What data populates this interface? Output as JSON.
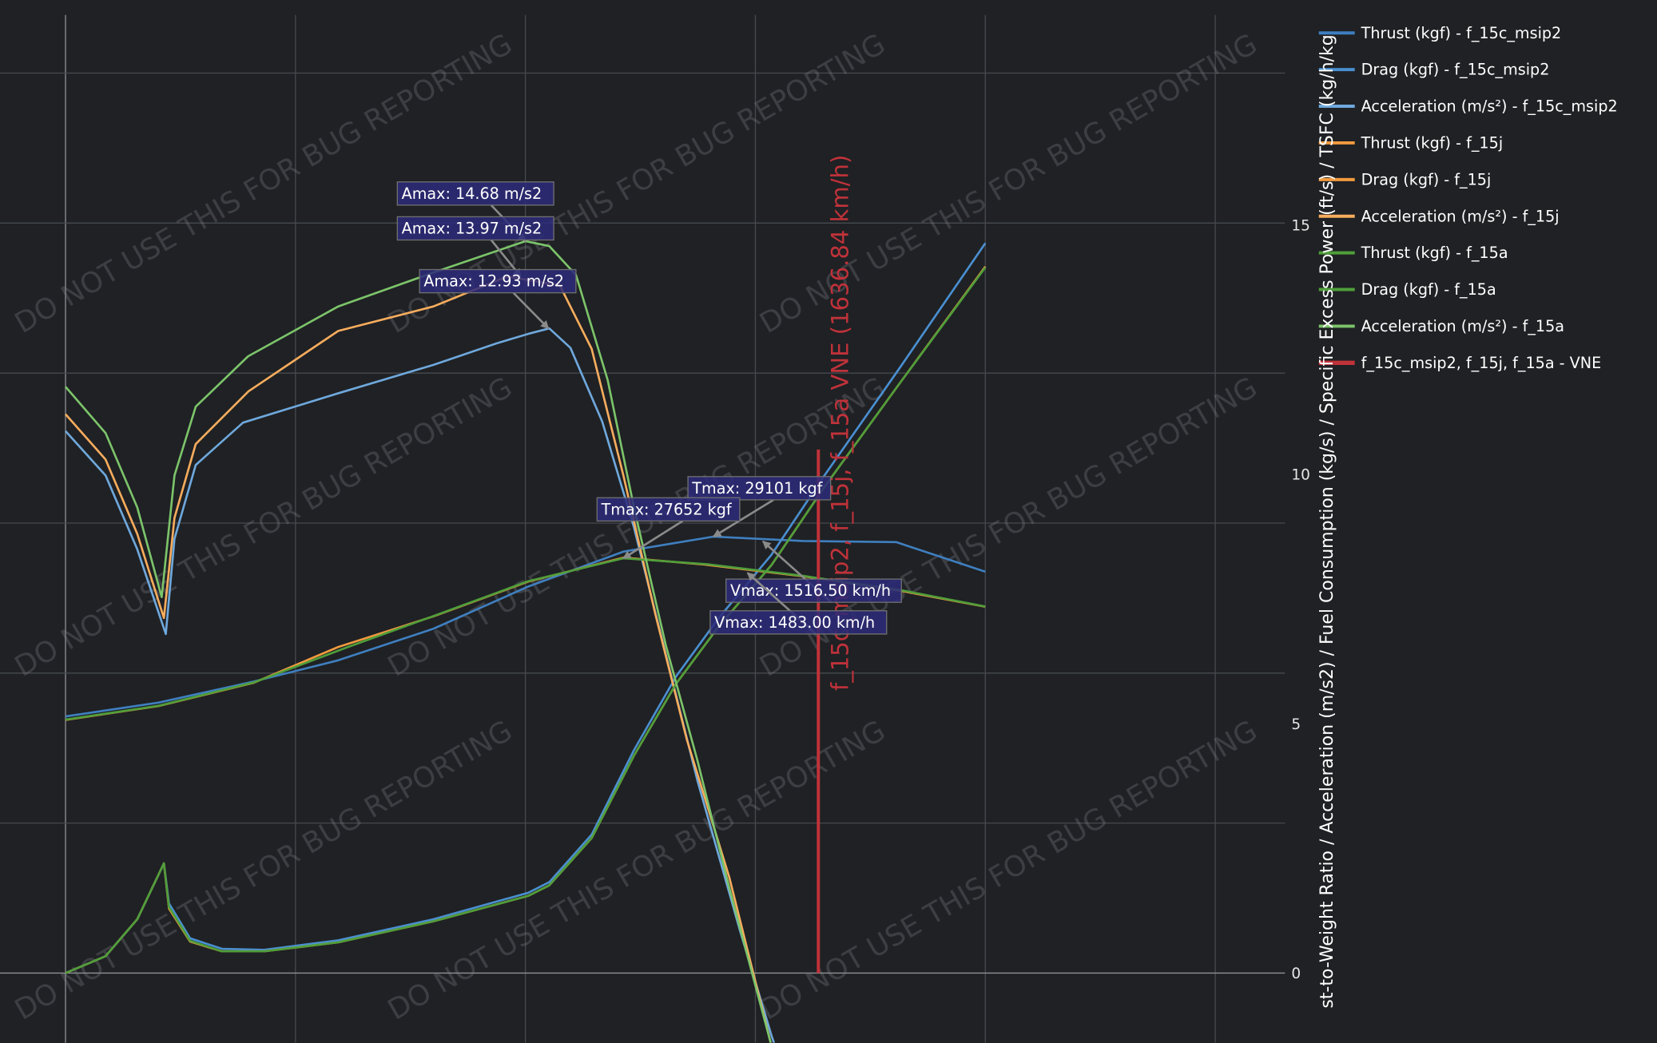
{
  "chart_data": {
    "type": "line",
    "xlabel": "",
    "x_unit": "km/h",
    "xlim": [
      -150,
      2650
    ],
    "y_left": {
      "label": "",
      "unit": "kgf",
      "range": [
        -5000,
        65000
      ],
      "ticks_visible": false
    },
    "y_right": {
      "label": "st-to-Weight Ratio / Acceleration (m/s2) / Fuel Consumption (kg/s) / Specific Excess Power (ft/s) / TSFC (kg/h/kg",
      "range": [
        -1.4,
        19.5
      ],
      "ticks": [
        0,
        5,
        10,
        15
      ]
    },
    "grid": true,
    "legend_position": "right",
    "colors": {
      "background": "#1f2124",
      "grid": "#46494e",
      "f_15c_msip2": "#3f7fc0",
      "f_15c_msip2_accel": "#6fa8dc",
      "f_15j": "#f29a3f",
      "f_15j_accel": "#f7ac5d",
      "f_15a": "#4f9e3a",
      "f_15a_accel": "#7cc46a",
      "vne": "#c0323a",
      "annotation_fill": "#2d2a7a",
      "annotation_border": "#707070"
    },
    "series": [
      {
        "name": "Thrust (kgf) - f_15c_msip2",
        "axis": "left",
        "color": "#3f7fc0",
        "x": [
          0,
          202,
          409,
          593,
          800,
          1006,
          1213,
          1409,
          1604,
          1806,
          2000
        ],
        "y": [
          17110,
          18030,
          19440,
          20850,
          22960,
          25770,
          28100,
          29101,
          28800,
          28730,
          26760
        ]
      },
      {
        "name": "Drag (kgf) - f_15c_msip2",
        "axis": "left",
        "color": "#4a8fd0",
        "x": [
          0,
          87,
          156,
          214,
          225,
          271,
          340,
          432,
          593,
          800,
          1006,
          1052,
          1144,
          1236,
          1328,
          1420,
          1535,
          1650,
          1811,
          2000
        ],
        "y": [
          0,
          1130,
          3590,
          7320,
          4650,
          2320,
          1620,
          1550,
          2180,
          3590,
          5350,
          6060,
          9230,
          14860,
          19790,
          23660,
          27890,
          33170,
          40210,
          48660
        ]
      },
      {
        "name": "Acceleration (m/s²) - f_15c_msip2",
        "axis": "right",
        "color": "#6fa8dc",
        "x": [
          0,
          87,
          156,
          218,
          237,
          283,
          386,
          593,
          800,
          937,
          1006,
          1052,
          1098,
          1167,
          1236,
          1305,
          1374,
          1466,
          1535,
          1600
        ],
        "y": [
          10.87,
          9.98,
          8.5,
          6.8,
          8.71,
          10.19,
          11.04,
          11.63,
          12.2,
          12.63,
          12.82,
          12.93,
          12.54,
          11.06,
          8.94,
          6.4,
          3.86,
          0.87,
          -1.25,
          -3.0
        ]
      },
      {
        "name": "Thrust (kgf) - f_15j",
        "axis": "left",
        "color": "#f29a3f",
        "x": [
          0,
          202,
          409,
          593,
          800,
          1006,
          1213,
          1390,
          1604,
          1806,
          2000
        ],
        "y": [
          16880,
          17800,
          19350,
          21740,
          23780,
          26100,
          27700,
          27230,
          26460,
          25540,
          24420
        ]
      },
      {
        "name": "Drag (kgf) - f_15j",
        "axis": "left",
        "color": "#f29a3f",
        "x": [
          0,
          87,
          156,
          214,
          225,
          271,
          340,
          432,
          593,
          800,
          1006,
          1052,
          1144,
          1236,
          1328,
          1420,
          1535,
          1650,
          1811,
          2000
        ],
        "y": [
          0,
          1130,
          3590,
          7320,
          4300,
          2100,
          1450,
          1450,
          2050,
          3450,
          5150,
          5850,
          9000,
          14500,
          19300,
          23100,
          27200,
          32400,
          39200,
          47100
        ]
      },
      {
        "name": "Acceleration (m/s²) - f_15j",
        "axis": "right",
        "color": "#f7ac5d",
        "x": [
          0,
          87,
          156,
          214,
          237,
          283,
          398,
          593,
          800,
          960,
          1075,
          1144,
          1213,
          1282,
          1351,
          1443,
          1535,
          1600
        ],
        "y": [
          11.21,
          10.3,
          8.81,
          7.12,
          9.13,
          10.61,
          11.67,
          12.88,
          13.37,
          13.97,
          13.79,
          12.52,
          9.98,
          7.22,
          4.68,
          1.93,
          -1.46,
          -3.0
        ]
      },
      {
        "name": "Thrust (kgf) - f_15a",
        "axis": "left",
        "color": "#4f9e3a",
        "x": [
          0,
          202,
          409,
          616,
          800,
          1006,
          1213,
          1397,
          1604,
          1811,
          2000
        ],
        "y": [
          16900,
          17820,
          19370,
          21760,
          23800,
          26130,
          27652,
          27250,
          26480,
          25560,
          24440
        ]
      },
      {
        "name": "Drag (kgf) - f_15a",
        "axis": "left",
        "color": "#4f9e3a",
        "x": [
          0,
          87,
          156,
          214,
          225,
          271,
          340,
          432,
          593,
          800,
          1006,
          1052,
          1144,
          1236,
          1328,
          1420,
          1535,
          1650,
          1811,
          2000
        ],
        "y": [
          0,
          1130,
          3590,
          7320,
          4400,
          2150,
          1450,
          1450,
          2050,
          3450,
          5150,
          5850,
          9000,
          14500,
          19300,
          23100,
          27200,
          32400,
          39200,
          47040
        ]
      },
      {
        "name": "Acceleration (m/s²) - f_15a",
        "axis": "right",
        "color": "#7cc46a",
        "x": [
          0,
          87,
          156,
          209,
          237,
          283,
          397,
          593,
          800,
          1000,
          1052,
          1110,
          1179,
          1236,
          1305,
          1374,
          1443,
          1535,
          1600
        ],
        "y": [
          11.76,
          10.83,
          9.34,
          7.54,
          9.98,
          11.36,
          12.37,
          13.37,
          14.05,
          14.68,
          14.58,
          14.0,
          11.89,
          9.34,
          6.59,
          4.26,
          1.72,
          -1.46,
          -3.0
        ]
      },
      {
        "name": "f_15c_msip2, f_15j, f_15a - VNE",
        "axis": "right",
        "color": "#c0323a",
        "x": [
          1636.84,
          1636.84
        ],
        "y": [
          0,
          10.5
        ]
      }
    ],
    "vne_label": "f_15c_msip2, f_15j, f_15a VNE (1636.84 km/h)",
    "annotations": [
      {
        "text": "Amax: 14.68 m/s2",
        "axis": "right",
        "x": 1000,
        "y": 14.68
      },
      {
        "text": "Amax: 13.97 m/s2",
        "axis": "right",
        "x": 990,
        "y": 13.97
      },
      {
        "text": "Amax: 12.93 m/s2",
        "axis": "right",
        "x": 1050,
        "y": 12.93
      },
      {
        "text": "Tmax: 29101 kgf",
        "axis": "left",
        "x": 1409,
        "y": 29101
      },
      {
        "text": "Tmax: 27652 kgf",
        "axis": "left",
        "x": 1213,
        "y": 27652
      },
      {
        "text": "Vmax: 1516.50 km/h",
        "axis": "left",
        "x": 1516.5,
        "y": 28780
      },
      {
        "text": "Vmax: 1483.00 km/h",
        "axis": "left",
        "x": 1483.0,
        "y": 26680
      }
    ],
    "watermark": "DO NOT USE THIS FOR BUG REPORTING"
  }
}
